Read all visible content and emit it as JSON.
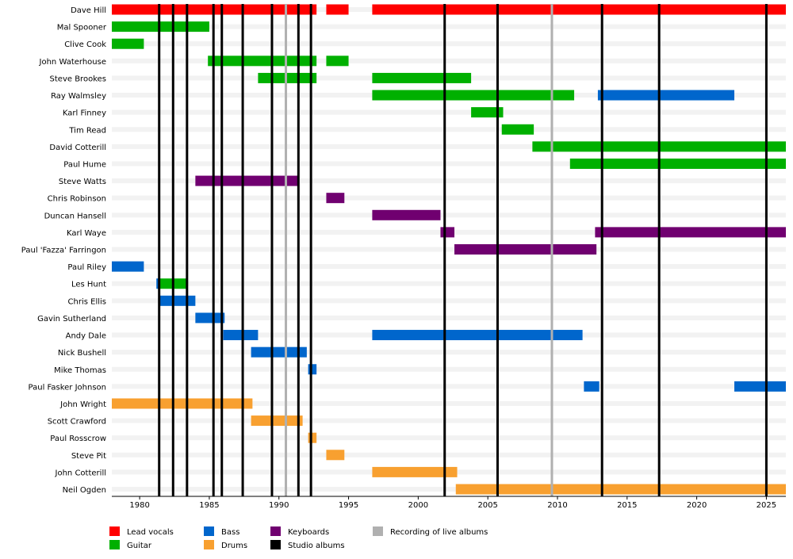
{
  "chart_data": {
    "type": "timeline",
    "categories": [
      "Dave Hill",
      "Mal Spooner",
      "Clive Cook",
      "John Waterhouse",
      "Steve Brookes",
      "Ray Walmsley",
      "Karl Finney",
      "Tim Read",
      "David Cotterill",
      "Paul Hume",
      "Steve Watts",
      "Chris Robinson",
      "Duncan Hansell",
      "Karl Waye",
      "Paul 'Fazza' Farringon",
      "Paul Riley",
      "Les Hunt",
      "Chris Ellis",
      "Gavin Sutherland",
      "Andy Dale",
      "Nick Bushell",
      "Mike Thomas",
      "Paul Fasker Johnson",
      "John Wright",
      "Scott Crawford",
      "Paul Rosscrow",
      "Steve Pit",
      "John Cotterill",
      "Neil Ogden"
    ],
    "series": [
      {
        "name": "Lead vocals",
        "color": "#ff0000",
        "values": [
          [
            [
              1978,
              1992.7
            ],
            [
              1993.4,
              1995.0
            ],
            [
              1996.7,
              2026.4
            ]
          ],
          [],
          [],
          [],
          [],
          [],
          [],
          [],
          [],
          [],
          [],
          [],
          [],
          [],
          [],
          [],
          [],
          [],
          [],
          [],
          [],
          [],
          [],
          [],
          [],
          [],
          [],
          [],
          []
        ]
      },
      {
        "name": "Guitar",
        "color": "#00b000",
        "values": [
          [],
          [
            [
              1978,
              1985.0
            ]
          ],
          [
            [
              1978,
              1980.3
            ]
          ],
          [
            [
              1984.9,
              1992.7
            ],
            [
              1993.4,
              1995.0
            ]
          ],
          [
            [
              1988.5,
              1992.7
            ],
            [
              1996.7,
              2003.8
            ]
          ],
          [
            [
              1996.7,
              2011.2
            ]
          ],
          [
            [
              2003.8,
              2006.1
            ]
          ],
          [
            [
              2006.0,
              2008.3
            ]
          ],
          [
            [
              2008.2,
              2026.4
            ]
          ],
          [
            [
              2010.9,
              2026.4
            ]
          ],
          [],
          [],
          [],
          [],
          [],
          [],
          [
            [
              1981.4,
              1983.4
            ]
          ],
          [],
          [],
          [],
          [],
          [],
          [],
          [],
          [],
          [],
          [],
          [],
          []
        ]
      },
      {
        "name": "Bass",
        "color": "#0066cc",
        "values": [
          [],
          [],
          [],
          [],
          [],
          [
            [
              2012.9,
              2022.7
            ]
          ],
          [],
          [],
          [],
          [],
          [],
          [],
          [],
          [],
          [],
          [
            [
              1978,
              1980.3
            ]
          ],
          [
            [
              1981.2,
              1981.4
            ]
          ],
          [
            [
              1981.4,
              1984.0
            ]
          ],
          [
            [
              1984.0,
              1986.1
            ]
          ],
          [
            [
              1986.0,
              1988.5
            ],
            [
              1996.7,
              2011.8
            ]
          ],
          [
            [
              1988.0,
              1992.0
            ]
          ],
          [
            [
              1992.1,
              1992.7
            ]
          ],
          [
            [
              2011.9,
              2013.0
            ],
            [
              2022.7,
              2026.4
            ]
          ],
          [],
          [],
          [],
          [],
          [],
          []
        ]
      },
      {
        "name": "Drums",
        "color": "#f8a030",
        "values": [
          [],
          [],
          [],
          [],
          [],
          [],
          [],
          [],
          [],
          [],
          [],
          [],
          [],
          [],
          [],
          [],
          [],
          [],
          [],
          [],
          [],
          [],
          [],
          [
            [
              1978,
              1988.1
            ]
          ],
          [
            [
              1988.0,
              1991.7
            ]
          ],
          [
            [
              1992.1,
              1992.7
            ]
          ],
          [
            [
              1993.4,
              1994.7
            ]
          ],
          [
            [
              1996.7,
              2002.8
            ]
          ],
          [
            [
              2002.7,
              2026.4
            ]
          ]
        ]
      },
      {
        "name": "Keyboards",
        "color": "#700070",
        "values": [
          [],
          [],
          [],
          [],
          [],
          [],
          [],
          [],
          [],
          [],
          [
            [
              1984.0,
              1991.4
            ]
          ],
          [
            [
              1993.4,
              1994.7
            ]
          ],
          [
            [
              1996.7,
              2001.6
            ]
          ],
          [
            [
              2001.6,
              2002.6
            ],
            [
              2012.7,
              2026.4
            ]
          ],
          [
            [
              2002.6,
              2012.8
            ]
          ],
          [],
          [],
          [],
          [],
          [],
          [],
          [],
          [],
          [],
          [],
          [],
          [],
          [],
          []
        ]
      },
      {
        "name": "Studio albums",
        "color": "#000000",
        "x": [
          1981.4,
          1982.4,
          1983.4,
          1985.3,
          1985.9,
          1987.4,
          1989.5,
          1991.4,
          1992.3,
          2001.9,
          2005.7,
          2013.2,
          2017.3,
          2025.0
        ]
      },
      {
        "name": "Recording of live albums",
        "color": "#b0b0b0",
        "x": [
          1990.5,
          2009.6
        ]
      }
    ],
    "xlim": [
      1978,
      2026.4
    ],
    "xticks": [
      1980,
      1985,
      1990,
      1995,
      2000,
      2005,
      2010,
      2015,
      2020,
      2025
    ]
  }
}
